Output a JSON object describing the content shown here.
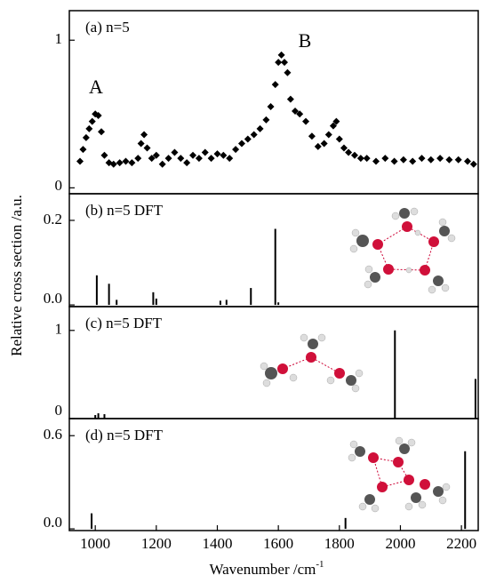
{
  "chart_data": [
    {
      "type": "scatter",
      "title": "(a) n=5",
      "annotations": [
        "A",
        "B"
      ],
      "y_label": "Relative cross section /a.u.",
      "x": [
        950,
        960,
        970,
        980,
        990,
        1000,
        1010,
        1020,
        1030,
        1045,
        1060,
        1080,
        1100,
        1120,
        1140,
        1150,
        1160,
        1170,
        1185,
        1200,
        1220,
        1240,
        1260,
        1280,
        1300,
        1320,
        1340,
        1360,
        1380,
        1400,
        1420,
        1440,
        1460,
        1480,
        1500,
        1520,
        1540,
        1560,
        1575,
        1590,
        1600,
        1610,
        1620,
        1630,
        1640,
        1655,
        1670,
        1690,
        1710,
        1730,
        1750,
        1765,
        1780,
        1790,
        1800,
        1815,
        1830,
        1850,
        1870,
        1890,
        1920,
        1950,
        1980,
        2010,
        2040,
        2070,
        2100,
        2130,
        2160,
        2190,
        2220,
        2240
      ],
      "values": [
        0.18,
        0.26,
        0.34,
        0.4,
        0.45,
        0.5,
        0.49,
        0.38,
        0.22,
        0.17,
        0.16,
        0.17,
        0.18,
        0.17,
        0.2,
        0.3,
        0.36,
        0.27,
        0.2,
        0.22,
        0.16,
        0.2,
        0.24,
        0.2,
        0.17,
        0.22,
        0.2,
        0.24,
        0.2,
        0.23,
        0.22,
        0.2,
        0.26,
        0.3,
        0.33,
        0.36,
        0.4,
        0.46,
        0.55,
        0.7,
        0.85,
        0.9,
        0.85,
        0.78,
        0.6,
        0.52,
        0.5,
        0.45,
        0.35,
        0.28,
        0.3,
        0.36,
        0.42,
        0.45,
        0.33,
        0.27,
        0.24,
        0.22,
        0.2,
        0.2,
        0.18,
        0.2,
        0.18,
        0.19,
        0.18,
        0.2,
        0.19,
        0.2,
        0.19,
        0.19,
        0.18,
        0.16
      ],
      "xlim": [
        915,
        2255
      ],
      "ylim": [
        -0.04,
        1.2
      ],
      "yticks": [
        0,
        1
      ],
      "color": "#000000"
    },
    {
      "type": "stick",
      "title": "(b) n=5 DFT",
      "x": [
        1005,
        1045,
        1070,
        1190,
        1200,
        1410,
        1430,
        1510,
        1590,
        1600
      ],
      "values": [
        0.07,
        0.05,
        0.012,
        0.03,
        0.015,
        0.01,
        0.012,
        0.04,
        0.18,
        0.006
      ],
      "xlim": [
        915,
        2255
      ],
      "ylim": [
        -0.004,
        0.263
      ],
      "yticks": [
        {
          "value": 0,
          "label": "0.0"
        },
        0.2
      ],
      "color": "#000000"
    },
    {
      "type": "stick",
      "title": "(c) n=5 DFT",
      "x": [
        1000,
        1010,
        1030,
        1982,
        2246
      ],
      "values": [
        0.04,
        0.06,
        0.05,
        1.0,
        0.45
      ],
      "xlim": [
        915,
        2255
      ],
      "ylim": [
        0,
        1.27
      ],
      "yticks": [
        0,
        1
      ],
      "color": "#000000"
    },
    {
      "type": "stick",
      "title": "(d) n=5 DFT",
      "x": [
        988,
        1820,
        2212
      ],
      "values": [
        0.1,
        0.07,
        0.5
      ],
      "xlim": [
        915,
        2255
      ],
      "ylim": [
        -0.011,
        0.71
      ],
      "yticks": [
        {
          "value": 0,
          "label": "0.0"
        },
        0.6
      ],
      "color": "#000000",
      "xticks": [
        1000,
        1200,
        1400,
        1600,
        1800,
        2000,
        2200
      ],
      "x_label": "Wavenumber /cm",
      "x_label_sup": "-1"
    }
  ]
}
